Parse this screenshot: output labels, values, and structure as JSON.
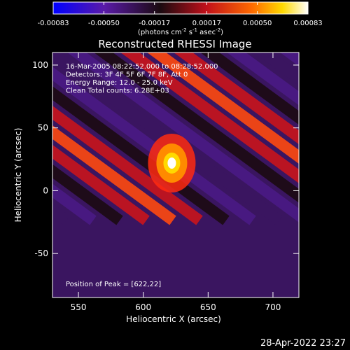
{
  "chart_data": {
    "type": "heatmap",
    "title": "Reconstructed RHESSI Image",
    "colorbar": {
      "min": -0.00083,
      "max": 0.00083,
      "tick_labels": [
        "-0.00083",
        "-0.00050",
        "-0.00017",
        "0.00017",
        "0.00050",
        "0.00083"
      ],
      "unit_prefix": "(photons cm",
      "unit_sup1": "-2",
      "unit_mid": " s",
      "unit_sup2": "-1",
      "unit_mid2": " asec",
      "unit_sup3": "-2",
      "unit_suffix": ")",
      "stops": [
        "#0000ff",
        "#5a1aa8",
        "#1a0a10",
        "#c0101a",
        "#ff6a00",
        "#ffd900",
        "#ffffff"
      ]
    },
    "xlabel": "Heliocentric X (arcsec)",
    "ylabel": "Heliocentric Y (arcsec)",
    "xlim": [
      530,
      720
    ],
    "ylim": [
      -85,
      110
    ],
    "xticks": [
      550,
      600,
      650,
      700
    ],
    "yticks": [
      -50,
      0,
      50,
      100
    ],
    "annotations": [
      "16-Mar-2005 08:22:52.000 to 08:28:52.000",
      "Detectors: 3F 4F 5F 6F 7F 8F, Att 0",
      "Energy Range: 12.0 - 25.0 keV",
      "Clean    Total counts: 6.28E+03"
    ],
    "peak_label": "Position of Peak = [622,22]",
    "peak": {
      "x": 622,
      "y": 22
    }
  },
  "footer": {
    "timestamp": "28-Apr-2022 23:27"
  }
}
